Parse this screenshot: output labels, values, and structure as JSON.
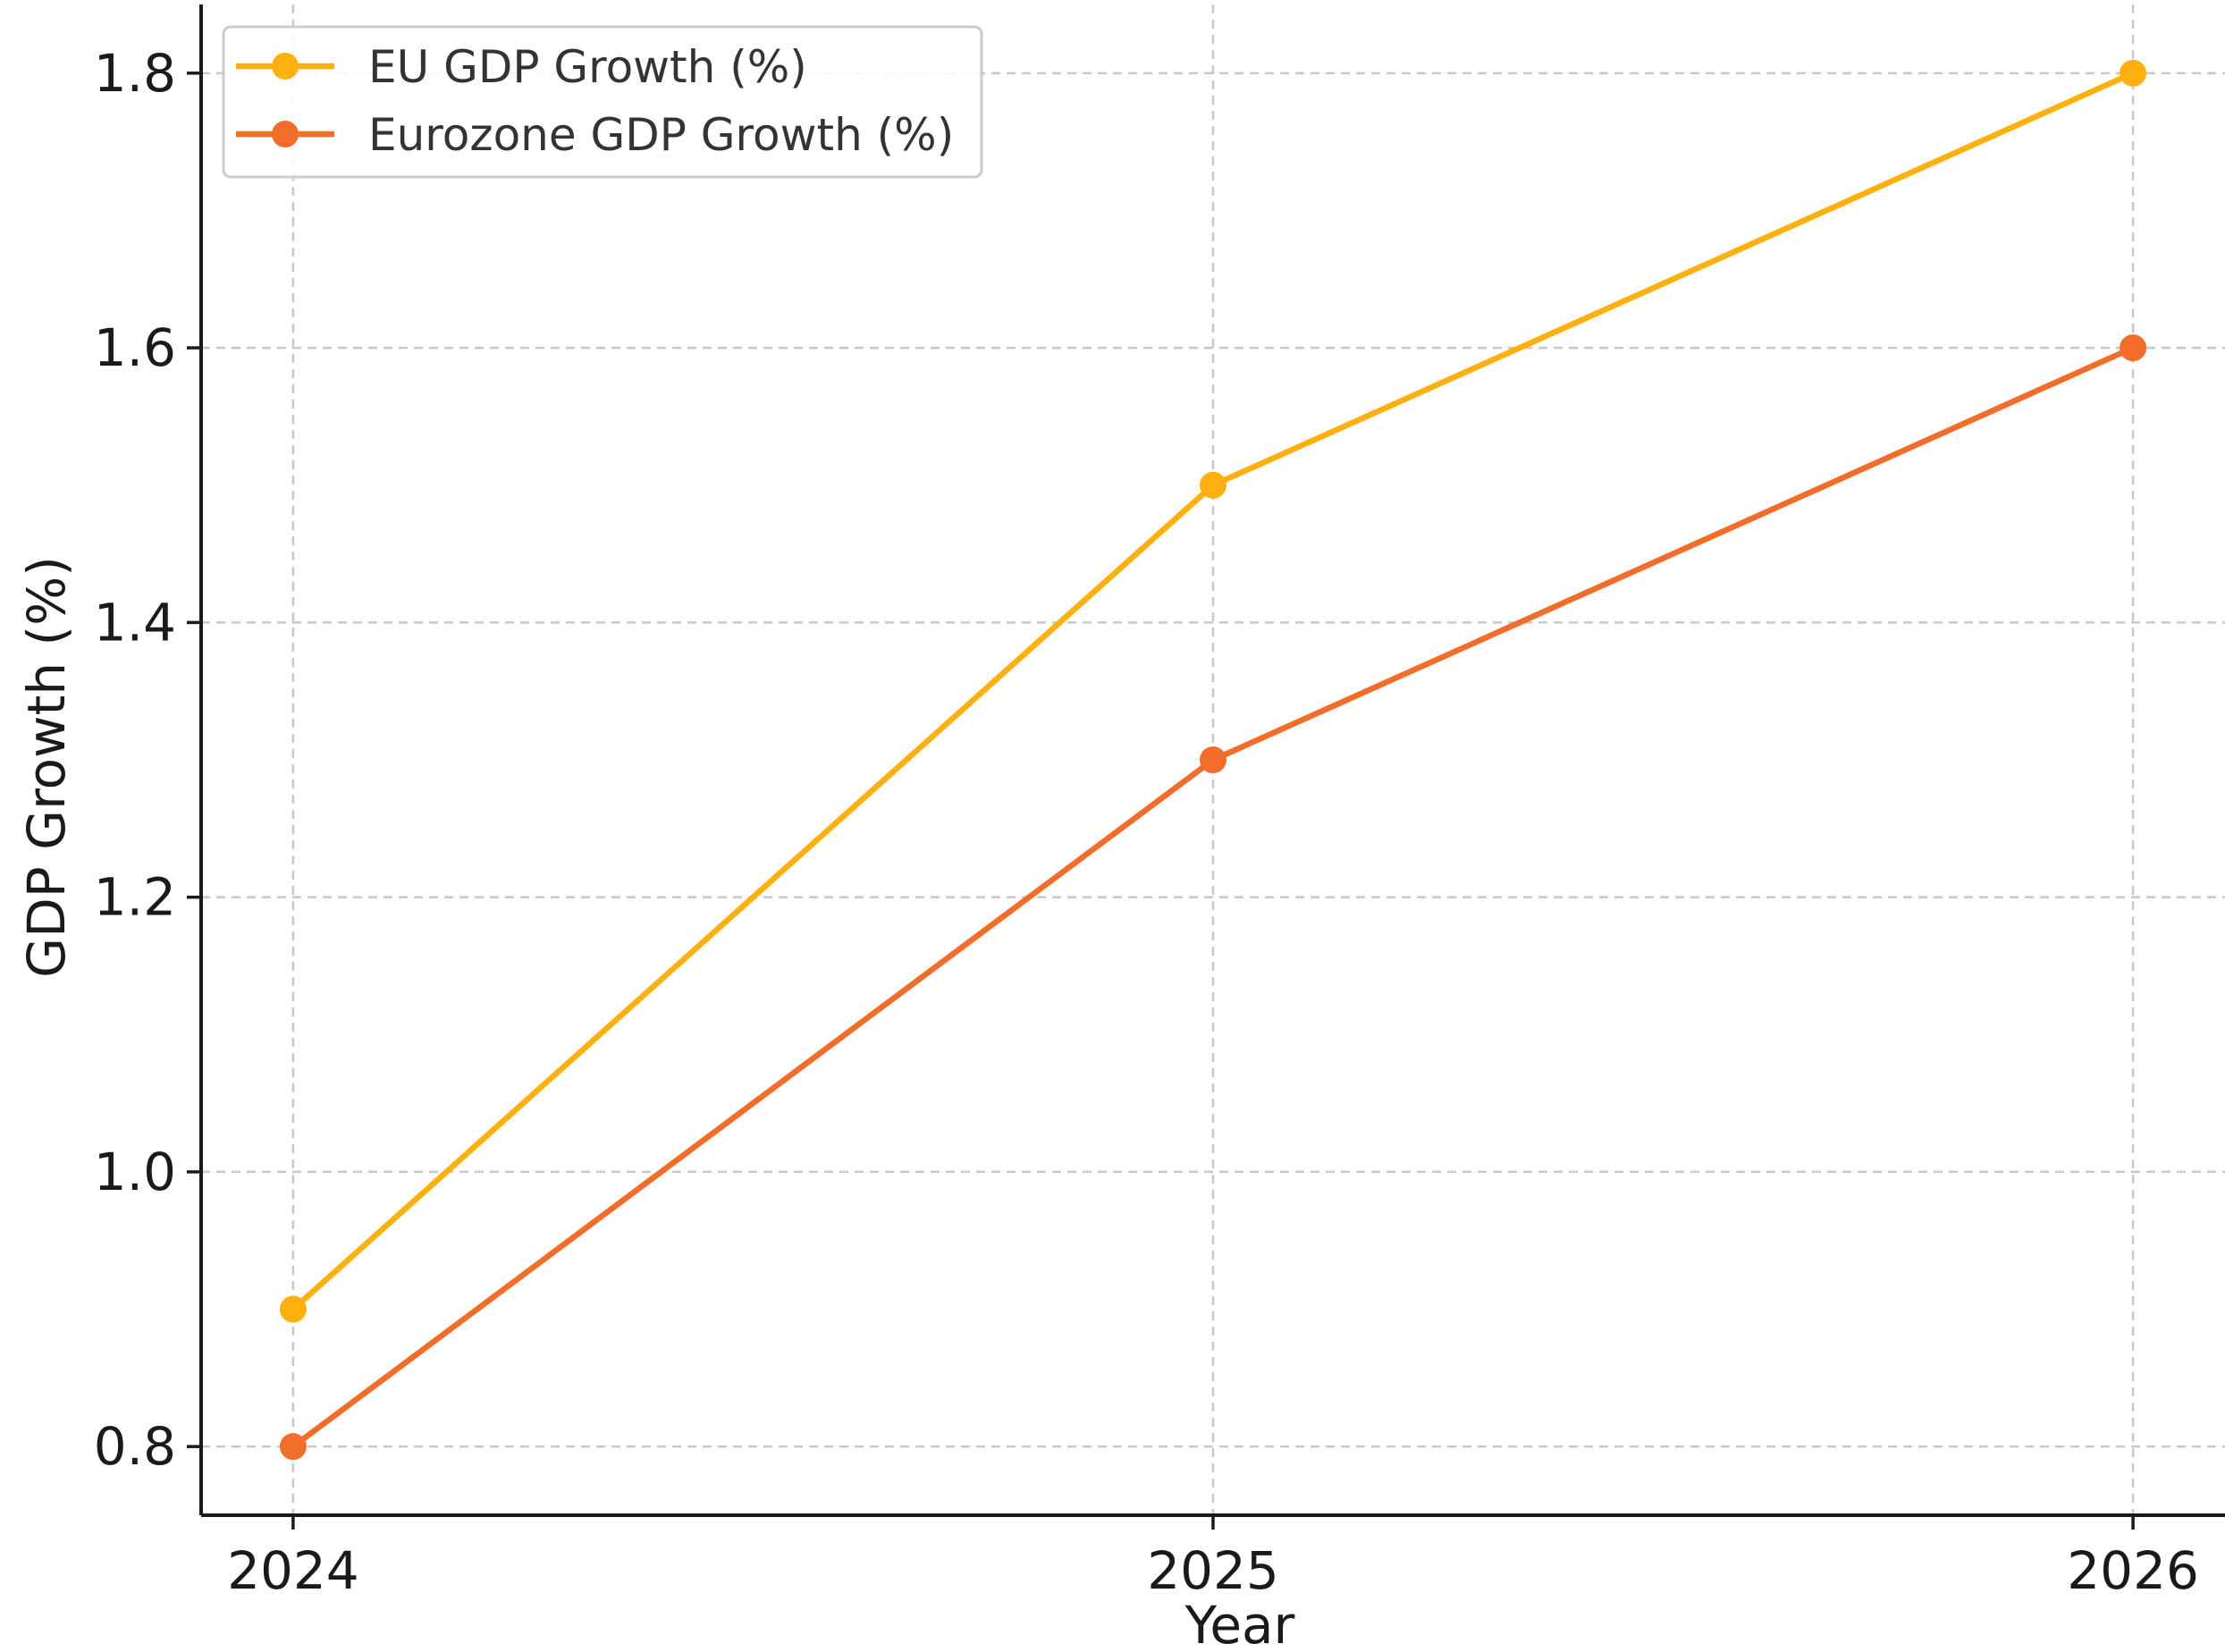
{
  "chart_data": {
    "type": "line",
    "title": "",
    "xlabel": "Year",
    "ylabel": "GDP Growth (%)",
    "x": [
      2024,
      2025,
      2026
    ],
    "x_tick_labels": [
      "2024",
      "2025",
      "2026"
    ],
    "y_ticks": [
      0.8,
      1.0,
      1.2,
      1.4,
      1.6,
      1.8
    ],
    "y_tick_labels": [
      "0.8",
      "1.0",
      "1.2",
      "1.4",
      "1.6",
      "1.8"
    ],
    "xlim": [
      2023.9,
      2026.1
    ],
    "ylim": [
      0.75,
      1.85
    ],
    "grid": true,
    "legend_placement": "top-left",
    "series": [
      {
        "name": "EU GDP Growth (%)",
        "values": [
          0.9,
          1.5,
          1.8
        ],
        "color": "#FFB00F",
        "marker": "circle"
      },
      {
        "name": "Eurozone GDP Growth (%)",
        "values": [
          0.8,
          1.3,
          1.6
        ],
        "color": "#F26C2A",
        "marker": "circle"
      }
    ]
  }
}
